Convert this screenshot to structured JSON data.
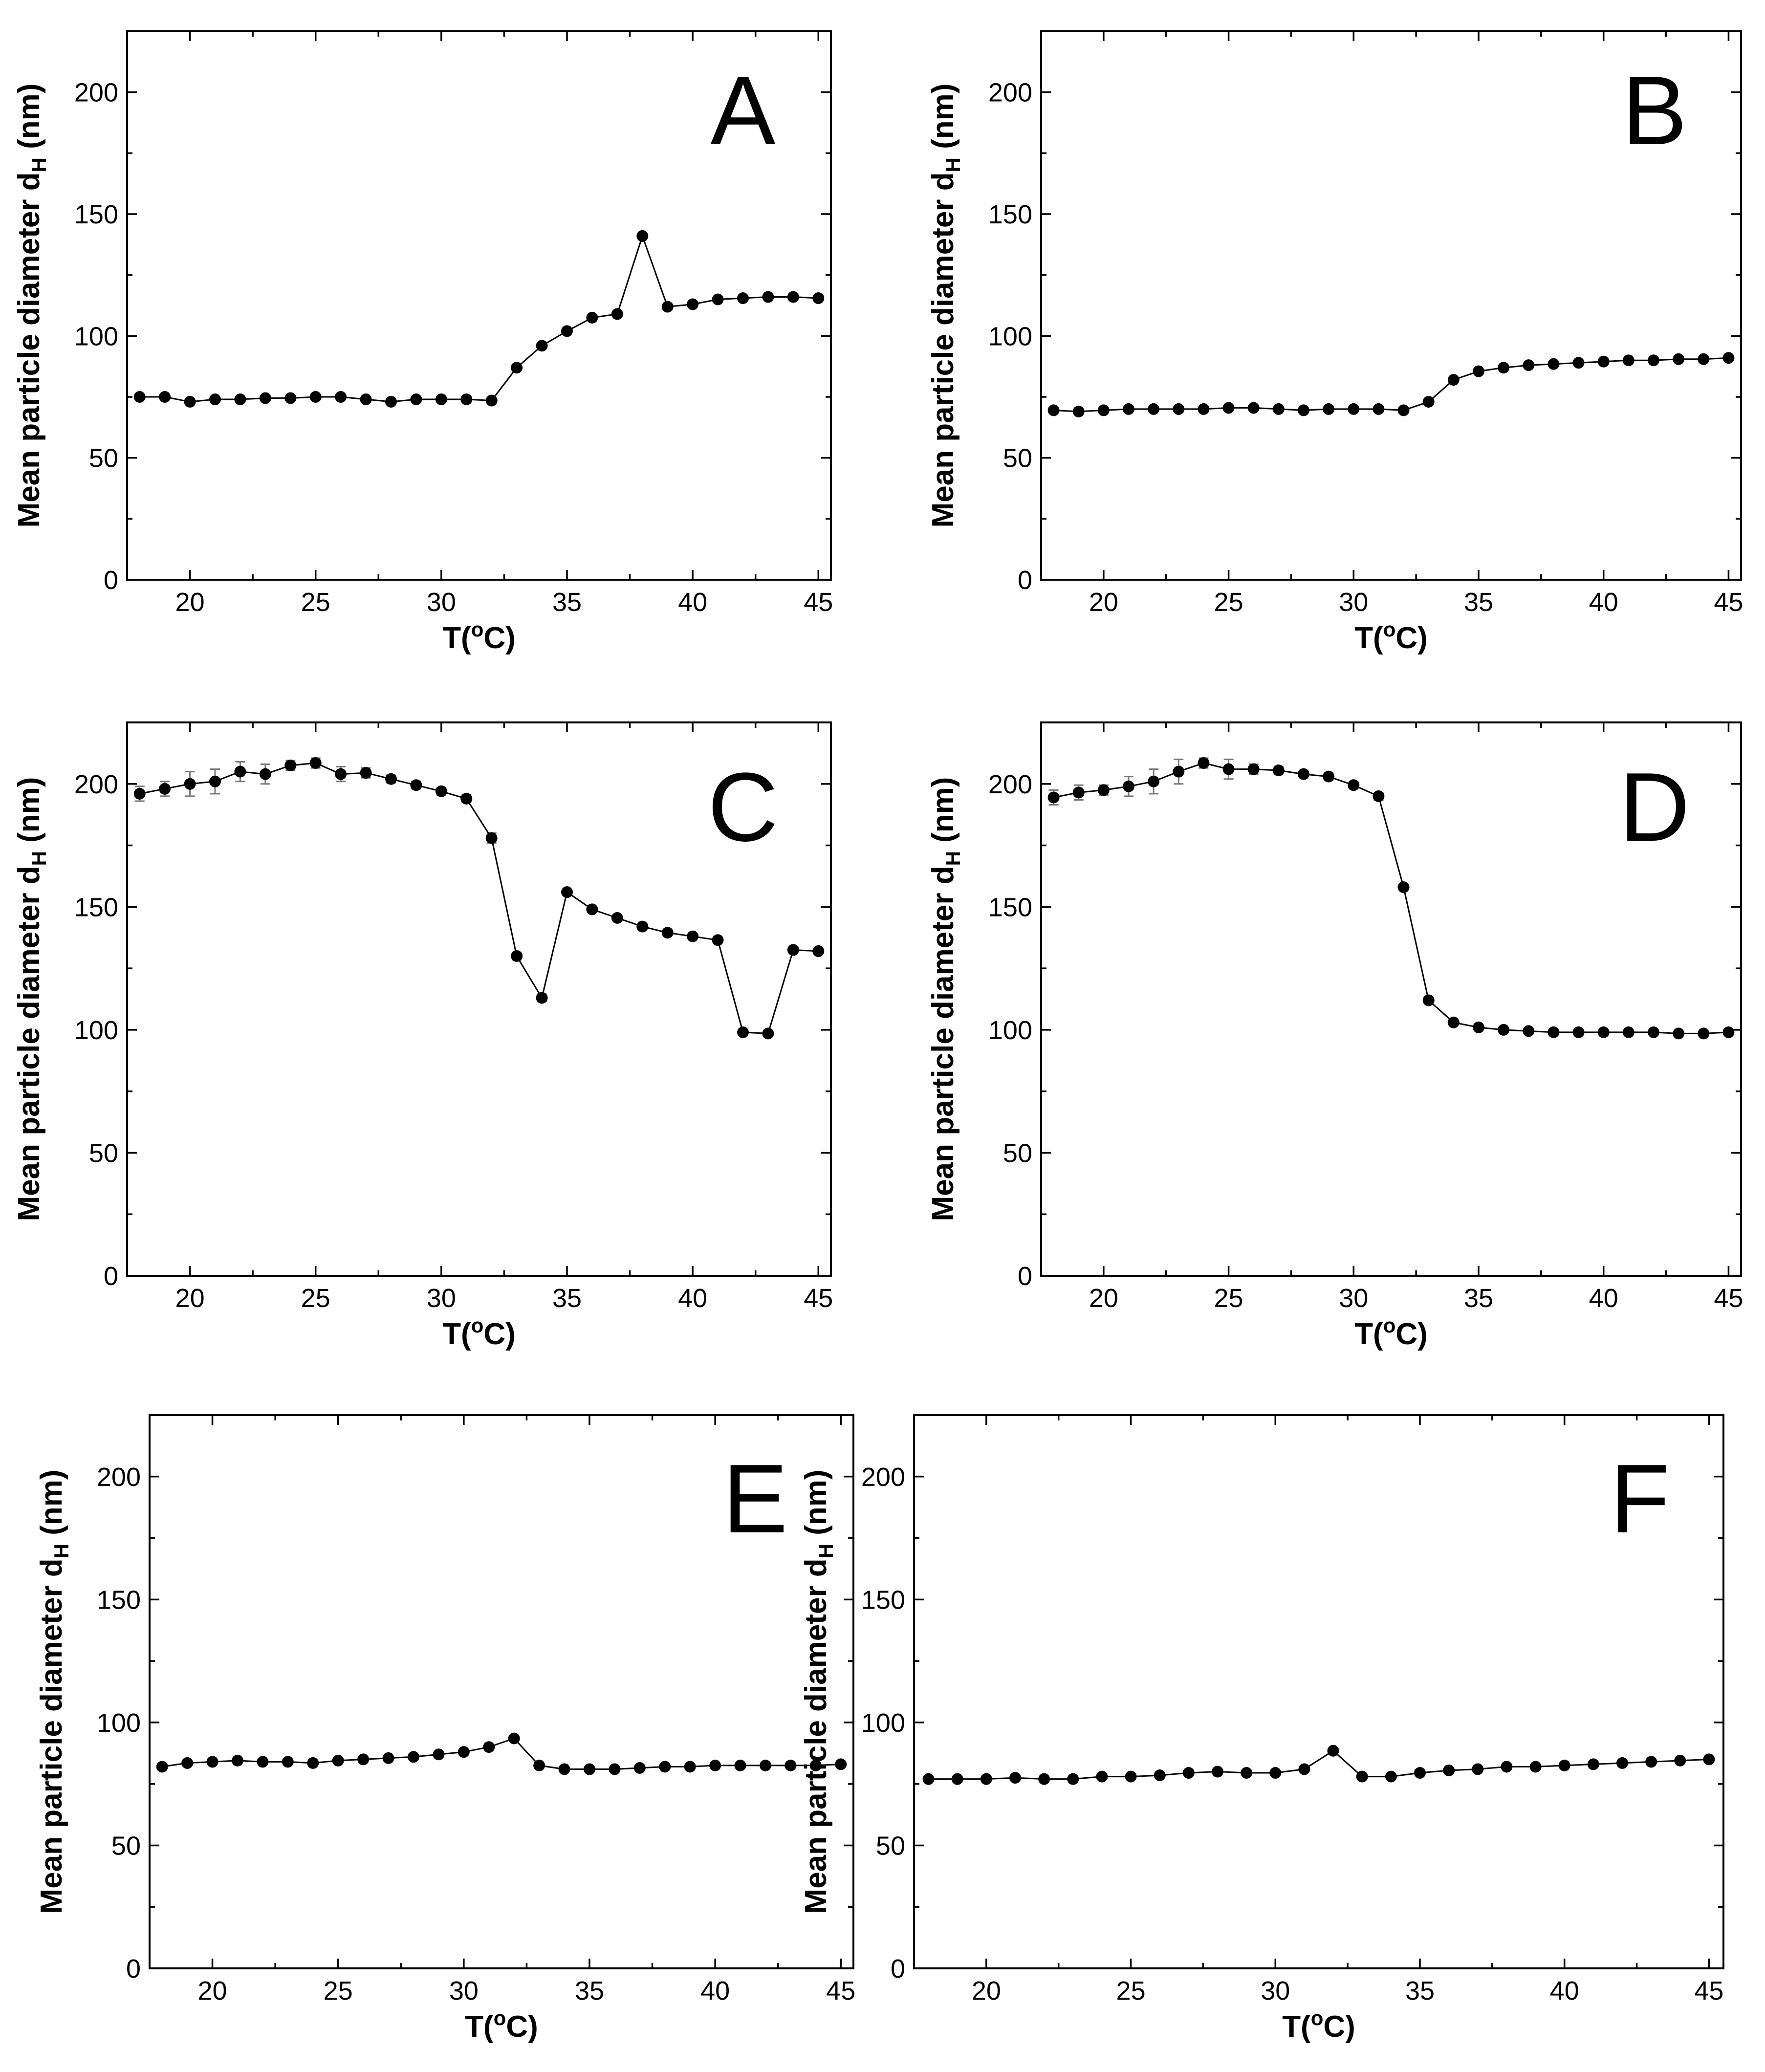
{
  "chart_data": [
    {
      "panel": "A",
      "type": "scatter",
      "xlabel": "T(oC)",
      "ylabel": "Mean particle diameter dH (nm)",
      "xlim": [
        17.5,
        45.5
      ],
      "ylim": [
        0,
        225
      ],
      "xticks": [
        20,
        25,
        30,
        35,
        40,
        45
      ],
      "yticks": [
        0,
        50,
        100,
        150,
        200
      ],
      "x": [
        18,
        19,
        20,
        21,
        22,
        23,
        24,
        25,
        26,
        27,
        28,
        29,
        30,
        31,
        32,
        33,
        34,
        35,
        36,
        37,
        38,
        39,
        40,
        41,
        42,
        43,
        44,
        45
      ],
      "values": [
        75,
        75,
        73,
        74,
        74,
        74.5,
        74.5,
        75,
        75,
        74,
        73,
        74,
        74,
        74,
        73.5,
        87,
        96,
        102,
        107.5,
        109,
        141,
        112,
        113,
        115,
        115.5,
        116,
        116,
        115.5
      ],
      "errors": [],
      "grid": false
    },
    {
      "panel": "B",
      "type": "scatter",
      "xlabel": "T(oC)",
      "ylabel": "Mean particle diameter dH (nm)",
      "xlim": [
        17.5,
        45.5
      ],
      "ylim": [
        0,
        225
      ],
      "xticks": [
        20,
        25,
        30,
        35,
        40,
        45
      ],
      "yticks": [
        0,
        50,
        100,
        150,
        200
      ],
      "x": [
        18,
        19,
        20,
        21,
        22,
        23,
        24,
        25,
        26,
        27,
        28,
        29,
        30,
        31,
        32,
        33,
        34,
        35,
        36,
        37,
        38,
        39,
        40,
        41,
        42,
        43,
        44,
        45
      ],
      "values": [
        69.5,
        69,
        69.5,
        70,
        70,
        70,
        70,
        70.5,
        70.5,
        70,
        69.5,
        70,
        70,
        70,
        69.5,
        73,
        82,
        85.5,
        87,
        88,
        88.5,
        89,
        89.5,
        90,
        90,
        90.5,
        90.5,
        91
      ],
      "errors": [],
      "grid": false
    },
    {
      "panel": "C",
      "type": "scatter",
      "xlabel": "T(oC)",
      "ylabel": "Mean particle diameter dH (nm)",
      "xlim": [
        17.5,
        45.5
      ],
      "ylim": [
        0,
        225
      ],
      "xticks": [
        20,
        25,
        30,
        35,
        40,
        45
      ],
      "yticks": [
        0,
        50,
        100,
        150,
        200
      ],
      "x": [
        18,
        19,
        20,
        21,
        22,
        23,
        24,
        25,
        26,
        27,
        28,
        29,
        30,
        31,
        32,
        33,
        34,
        35,
        36,
        37,
        38,
        39,
        40,
        41,
        42,
        43,
        44,
        45
      ],
      "values": [
        196,
        198,
        200,
        201,
        205,
        204,
        207.5,
        208.5,
        204,
        204.5,
        202,
        199.5,
        197,
        194,
        178,
        130,
        113,
        156,
        149,
        145.5,
        142,
        139.5,
        138,
        136.5,
        99,
        98.5,
        132.5,
        132
      ],
      "errors": [
        3,
        3,
        5,
        5,
        4,
        4,
        2,
        2,
        3,
        2,
        1.5,
        1.5,
        1.5,
        1.5,
        2,
        1.5,
        1.5,
        1,
        1,
        1,
        1,
        1,
        1,
        1,
        1,
        1,
        1,
        1
      ],
      "grid": false
    },
    {
      "panel": "D",
      "type": "scatter",
      "xlabel": "T(oC)",
      "ylabel": "Mean particle diameter dH (nm)",
      "xlim": [
        17.5,
        45.5
      ],
      "ylim": [
        0,
        225
      ],
      "xticks": [
        20,
        25,
        30,
        35,
        40,
        45
      ],
      "yticks": [
        0,
        50,
        100,
        150,
        200
      ],
      "x": [
        18,
        19,
        20,
        21,
        22,
        23,
        24,
        25,
        26,
        27,
        28,
        29,
        30,
        31,
        32,
        33,
        34,
        35,
        36,
        37,
        38,
        39,
        40,
        41,
        42,
        43,
        44,
        45
      ],
      "values": [
        194.5,
        196.5,
        197.5,
        199,
        201,
        205,
        208.5,
        206,
        206,
        205.5,
        204,
        203,
        199.5,
        195,
        158,
        112,
        103,
        101,
        100,
        99.5,
        99,
        99,
        99,
        99,
        99,
        98.5,
        98.5,
        99
      ],
      "errors": [
        3,
        3,
        2,
        4,
        5,
        5,
        2,
        4,
        2,
        1.5,
        1.5,
        1.5,
        1.5,
        1.5,
        1,
        1,
        1,
        1,
        1,
        1,
        1,
        1,
        1,
        1,
        1,
        1,
        1,
        1
      ],
      "grid": false
    },
    {
      "panel": "E",
      "type": "scatter",
      "xlabel": "T(oC)",
      "ylabel": "Mean particle diameter dH (nm)",
      "xlim": [
        17.5,
        45.5
      ],
      "ylim": [
        0,
        225
      ],
      "xticks": [
        20,
        25,
        30,
        35,
        40,
        45
      ],
      "yticks": [
        0,
        50,
        100,
        150,
        200
      ],
      "x": [
        18,
        19,
        20,
        21,
        22,
        23,
        24,
        25,
        26,
        27,
        28,
        29,
        30,
        31,
        32,
        33,
        34,
        35,
        36,
        37,
        38,
        39,
        40,
        41,
        42,
        43,
        44,
        45
      ],
      "values": [
        82,
        83.5,
        84,
        84.5,
        84,
        84,
        83.5,
        84.5,
        85,
        85.5,
        86,
        87,
        88,
        90,
        93.5,
        82.5,
        81,
        81,
        81,
        81.5,
        82,
        82,
        82.5,
        82.5,
        82.5,
        82.5,
        82.5,
        83
      ],
      "errors": [],
      "grid": false
    },
    {
      "panel": "F",
      "type": "scatter",
      "xlabel": "T(oC)",
      "ylabel": "Mean particle diameter dH (nm)",
      "xlim": [
        17.5,
        45.5
      ],
      "ylim": [
        0,
        225
      ],
      "xticks": [
        20,
        25,
        30,
        35,
        40,
        45
      ],
      "yticks": [
        0,
        50,
        100,
        150,
        200
      ],
      "x": [
        18,
        19,
        20,
        21,
        22,
        23,
        24,
        25,
        26,
        27,
        28,
        29,
        30,
        31,
        32,
        33,
        34,
        35,
        36,
        37,
        38,
        39,
        40,
        41,
        42,
        43,
        44,
        45
      ],
      "values": [
        77,
        77,
        77,
        77.5,
        77,
        77,
        78,
        78,
        78.5,
        79.5,
        80,
        79.5,
        79.5,
        81,
        88.5,
        78,
        78,
        79.5,
        80.5,
        81,
        82,
        82,
        82.5,
        83,
        83.5,
        84,
        84.5,
        85
      ],
      "errors": [],
      "grid": false
    }
  ],
  "labels": {
    "x_axis": {
      "main": "T(",
      "sup": "o",
      "end": "C)"
    },
    "y_axis": {
      "main": "Mean particle diameter d",
      "sub": "H",
      "end": " (nm)"
    }
  }
}
